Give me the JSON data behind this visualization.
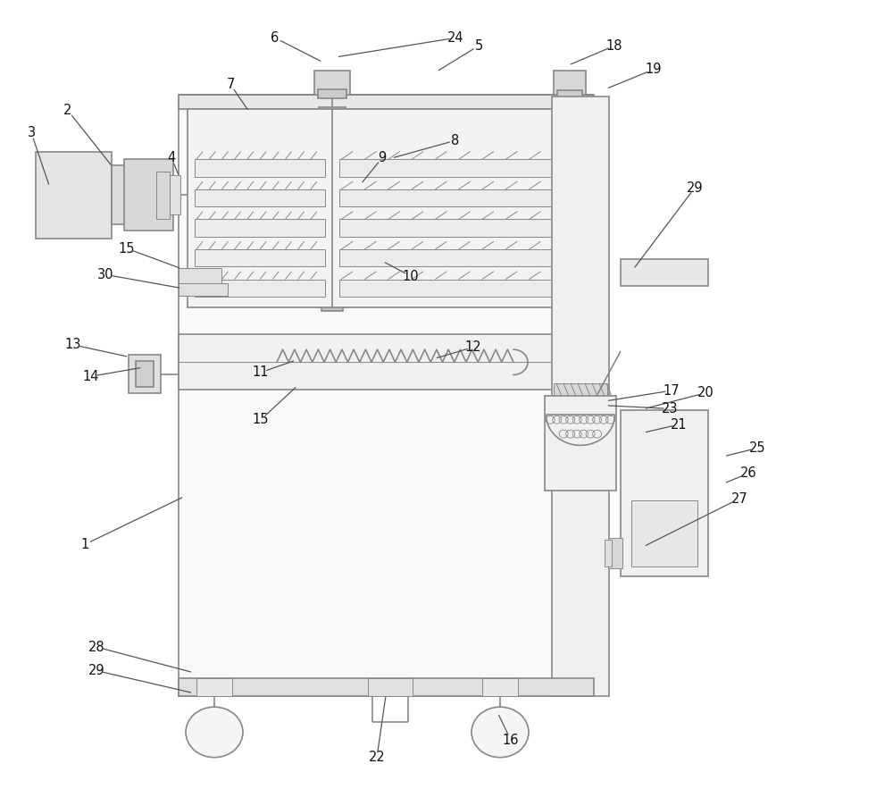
{
  "bg": "#ffffff",
  "lc": "#888888",
  "lw": 1.2,
  "lw_thin": 0.7,
  "fig_w": 10.0,
  "fig_h": 8.83,
  "font_size": 10.5,
  "labels": {
    "1": [
      0.095,
      0.31,
      0.205,
      0.37
    ],
    "2": [
      0.076,
      0.86,
      0.125,
      0.79
    ],
    "3": [
      0.035,
      0.832,
      0.055,
      0.765
    ],
    "4": [
      0.192,
      0.8,
      0.2,
      0.778
    ],
    "5": [
      0.536,
      0.942,
      0.49,
      0.91
    ],
    "6": [
      0.308,
      0.952,
      0.36,
      0.922
    ],
    "7": [
      0.258,
      0.893,
      0.278,
      0.86
    ],
    "8": [
      0.51,
      0.822,
      0.44,
      0.8
    ],
    "9": [
      0.428,
      0.8,
      0.405,
      0.768
    ],
    "10": [
      0.46,
      0.65,
      0.43,
      0.668
    ],
    "11": [
      0.292,
      0.528,
      0.33,
      0.543
    ],
    "12": [
      0.53,
      0.56,
      0.488,
      0.546
    ],
    "13": [
      0.082,
      0.563,
      0.143,
      0.548
    ],
    "14": [
      0.102,
      0.523,
      0.158,
      0.534
    ],
    "15a": [
      0.142,
      0.685,
      0.202,
      0.66
    ],
    "15b": [
      0.292,
      0.468,
      0.332,
      0.51
    ],
    "16": [
      0.572,
      0.062,
      0.558,
      0.095
    ],
    "17": [
      0.752,
      0.505,
      0.68,
      0.492
    ],
    "18": [
      0.688,
      0.942,
      0.638,
      0.918
    ],
    "19": [
      0.732,
      0.912,
      0.68,
      0.888
    ],
    "20": [
      0.79,
      0.502,
      0.722,
      0.482
    ],
    "21": [
      0.76,
      0.462,
      0.722,
      0.452
    ],
    "22": [
      0.422,
      0.04,
      0.432,
      0.118
    ],
    "23": [
      0.75,
      0.482,
      0.68,
      0.486
    ],
    "24": [
      0.51,
      0.952,
      0.378,
      0.928
    ],
    "25": [
      0.848,
      0.432,
      0.812,
      0.422
    ],
    "26": [
      0.838,
      0.4,
      0.812,
      0.388
    ],
    "27": [
      0.828,
      0.368,
      0.722,
      0.308
    ],
    "28": [
      0.108,
      0.18,
      0.215,
      0.148
    ],
    "29a": [
      0.108,
      0.15,
      0.215,
      0.122
    ],
    "29b": [
      0.778,
      0.762,
      0.71,
      0.66
    ],
    "30": [
      0.118,
      0.652,
      0.202,
      0.635
    ]
  }
}
